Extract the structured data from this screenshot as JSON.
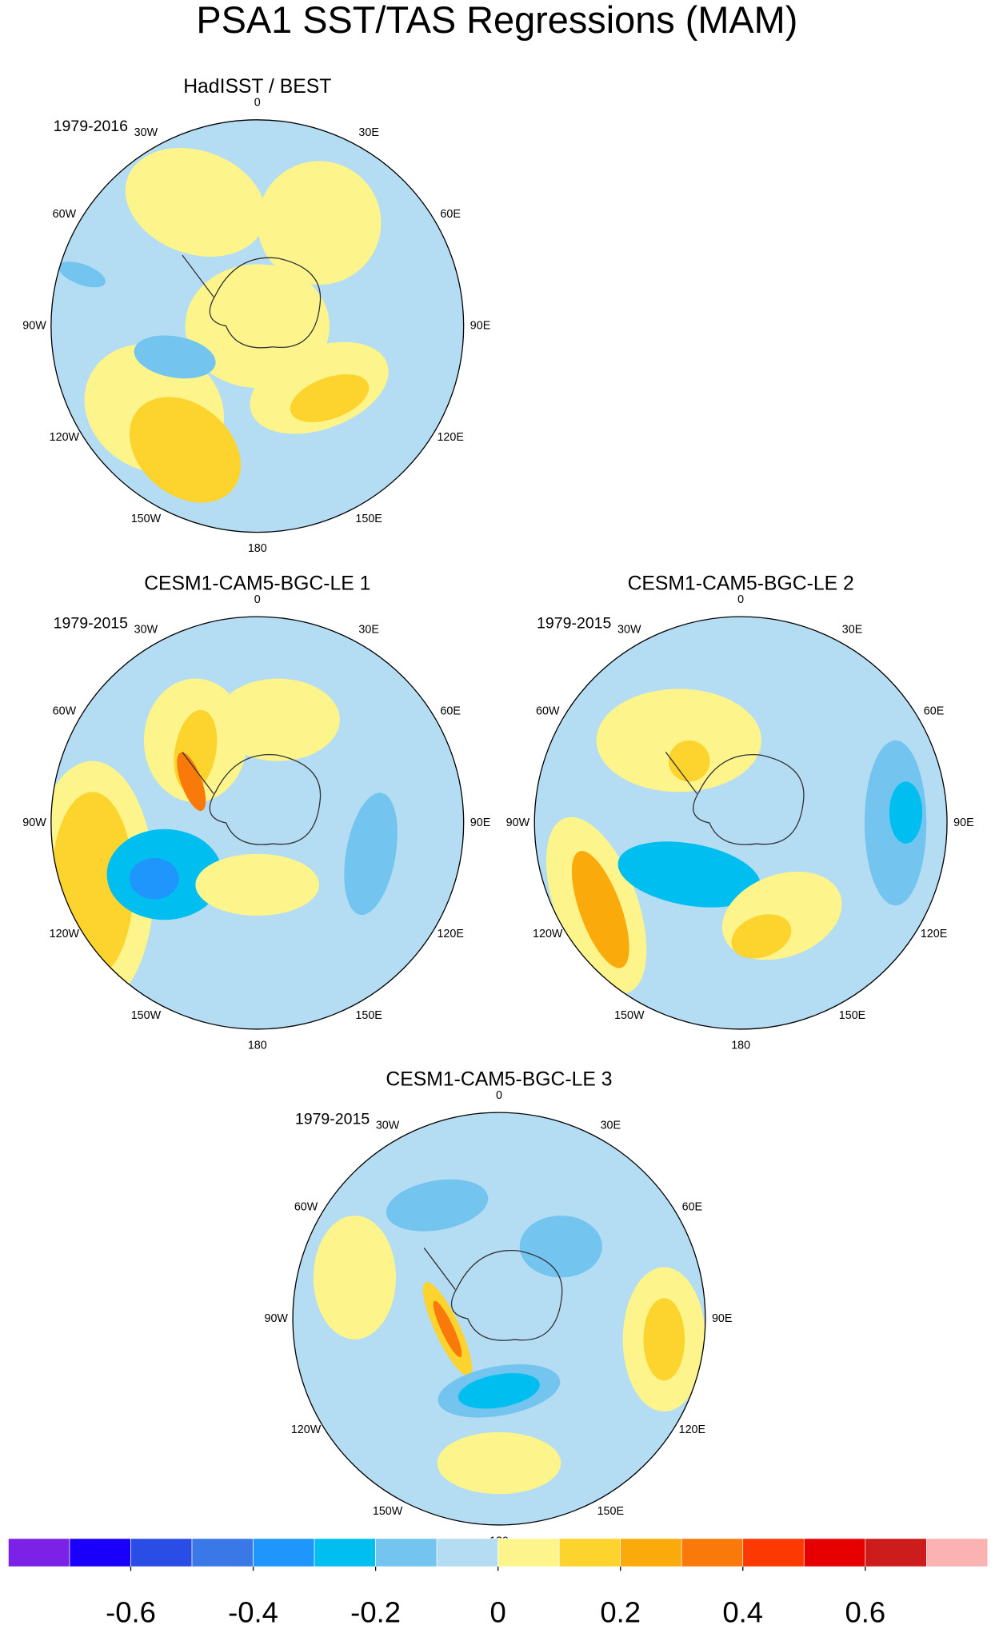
{
  "title": "PSA1 SST/TAS Regressions (MAM)",
  "longitude_labels": [
    "0",
    "30E",
    "60E",
    "90E",
    "120E",
    "150E",
    "180",
    "150W",
    "120W",
    "90W",
    "60W",
    "30W"
  ],
  "panels": [
    {
      "title": "HadISST / BEST",
      "period": "1979-2016"
    },
    {
      "title": "CESM1-CAM5-BGC-LE 1",
      "period": "1979-2015"
    },
    {
      "title": "CESM1-CAM5-BGC-LE 2",
      "period": "1979-2015"
    },
    {
      "title": "CESM1-CAM5-BGC-LE 3",
      "period": "1979-2015"
    }
  ],
  "colorbar": {
    "lim": [
      -0.8,
      0.8
    ],
    "ticks": [
      -0.6,
      -0.4,
      -0.2,
      0,
      0.2,
      0.4,
      0.6
    ],
    "colors": [
      "#7b22e6",
      "#1a00fa",
      "#2a4de6",
      "#3a78e8",
      "#1e96fb",
      "#00bff0",
      "#73c5f0",
      "#b4dcf2",
      "#fdf58c",
      "#fdd32e",
      "#fbaa0c",
      "#f97a0a",
      "#fc3a00",
      "#e60000",
      "#cc1c1c",
      "#fbb2b2"
    ]
  }
}
